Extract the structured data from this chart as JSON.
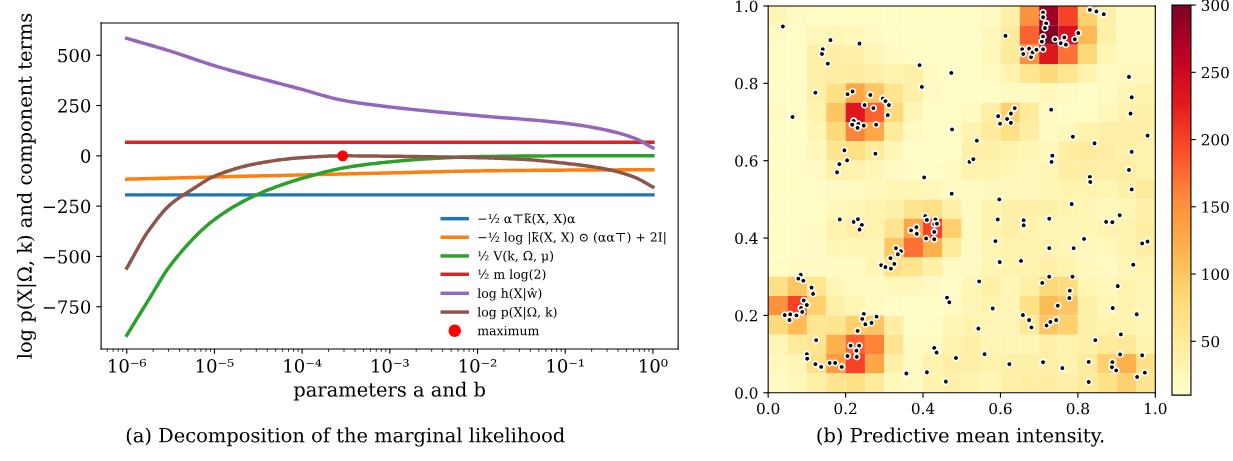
{
  "chart_data": [
    {
      "type": "line",
      "xlabel": "parameters a and b",
      "ylabel": "log p(X|Ω, k) and component terms",
      "log": "x",
      "legend": "bottom right",
      "grid": false,
      "xlim": [
        5.1e-07,
        1.94
      ],
      "xticks": [
        {
          "value": 1e-06,
          "label": "10⁻⁶"
        },
        {
          "value": 1e-05,
          "label": "10⁻⁵"
        },
        {
          "value": 0.0001,
          "label": "10⁻⁴"
        },
        {
          "value": 0.001,
          "label": "10⁻³"
        },
        {
          "value": 0.01,
          "label": "10⁻²"
        },
        {
          "value": 0.1,
          "label": "10⁻¹"
        },
        {
          "value": 1,
          "label": "10⁰"
        }
      ],
      "ylim": [
        -960,
        660
      ],
      "yticks": [
        {
          "value": -750,
          "label": "−750"
        },
        {
          "value": -500,
          "label": "−500"
        },
        {
          "value": -250,
          "label": "−250"
        },
        0,
        250,
        500
      ],
      "annotations": [
        "(a) Decomposition of the marginal likelihood"
      ],
      "series": [
        {
          "name": "−½ α⊤k̃(X, X)α",
          "color": "#1f77b4",
          "x": [
            1e-06,
            1
          ],
          "values": [
            -194,
            -194
          ]
        },
        {
          "name": "−½ log |k̃(X, X) ⊙ (αα⊤) + 2I|",
          "color": "#ff7f0e",
          "x": [
            1e-06,
            1e-05,
            0.0001,
            0.001,
            0.01,
            0.1,
            1
          ],
          "values": [
            -116,
            -105,
            -95,
            -85,
            -75,
            -71,
            -69
          ]
        },
        {
          "name": "½ V(k, Ω, μ)",
          "color": "#2ca02c",
          "x": [
            1e-06,
            1.78e-06,
            3.16e-06,
            1e-05,
            3.16e-05,
            0.0001,
            0.000316,
            0.001,
            0.00316,
            0.01,
            0.1,
            1
          ],
          "values": [
            -892,
            -715,
            -543,
            -317,
            -190,
            -112,
            -58,
            -30,
            -13,
            -4,
            0,
            0
          ]
        },
        {
          "name": "½ m log(2)",
          "color": "#d62728",
          "x": [
            1e-06,
            1
          ],
          "values": [
            67,
            67
          ]
        },
        {
          "name": "log h(X|ŵ)",
          "color": "#9467bd",
          "x": [
            1e-06,
            3.16e-06,
            1e-05,
            0.0001,
            0.00029,
            0.001,
            0.01,
            0.1,
            0.316,
            0.63,
            1
          ],
          "values": [
            584,
            520,
            448,
            330,
            276,
            243,
            200,
            162,
            125,
            86,
            39
          ]
        },
        {
          "name": "log p(X|Ω, k)",
          "color": "#8c564b",
          "x": [
            1e-06,
            1.78e-06,
            3.16e-06,
            5.62e-06,
            1e-05,
            3.16e-05,
            0.0001,
            0.00029,
            0.001,
            0.01,
            0.0316,
            0.1,
            0.316,
            0.63,
            1
          ],
          "values": [
            -558,
            -371,
            -241,
            -166,
            -101,
            -37,
            -9,
            0,
            -2,
            -9,
            -17,
            -37,
            -69,
            -108,
            -155
          ]
        },
        {
          "name": "maximum",
          "type": "scatter",
          "marker": "circle",
          "color": "#ff0000",
          "x": [
            0.00029
          ],
          "values": [
            0
          ]
        }
      ]
    },
    {
      "type": "heatmap",
      "annotations": [
        "(b) Predictive mean intensity."
      ],
      "grid": false,
      "xlim": [
        0,
        1
      ],
      "xticks": [
        {
          "value": 0,
          "label": "0.0"
        },
        0.2,
        0.4,
        0.6,
        0.8,
        {
          "value": 1,
          "label": "1.0"
        }
      ],
      "ylim": [
        0,
        1
      ],
      "yticks": [
        {
          "value": 0,
          "label": "0.0"
        },
        0.2,
        0.4,
        0.6,
        0.8,
        {
          "value": 1,
          "label": "1.0"
        }
      ],
      "clim": [
        10,
        300
      ],
      "cticks": [
        50,
        100,
        150,
        200,
        250,
        300
      ],
      "cells": [
        [
          30,
          20,
          15,
          15,
          15,
          15,
          15,
          15,
          15,
          15,
          15,
          20,
          40,
          150,
          280,
          200,
          90,
          40,
          20,
          20
        ],
        [
          20,
          15,
          25,
          30,
          25,
          20,
          15,
          15,
          15,
          15,
          15,
          25,
          50,
          180,
          300,
          240,
          110,
          40,
          20,
          20
        ],
        [
          15,
          15,
          40,
          45,
          40,
          30,
          20,
          15,
          15,
          15,
          15,
          25,
          50,
          150,
          230,
          170,
          80,
          30,
          20,
          20
        ],
        [
          15,
          15,
          40,
          45,
          45,
          40,
          35,
          40,
          20,
          15,
          15,
          20,
          35,
          60,
          80,
          60,
          35,
          20,
          25,
          25
        ],
        [
          15,
          15,
          40,
          70,
          130,
          100,
          60,
          40,
          20,
          15,
          15,
          15,
          20,
          20,
          25,
          20,
          15,
          20,
          30,
          35
        ],
        [
          20,
          15,
          35,
          100,
          230,
          180,
          80,
          30,
          15,
          15,
          20,
          40,
          90,
          50,
          20,
          15,
          15,
          25,
          35,
          40
        ],
        [
          15,
          15,
          30,
          80,
          160,
          130,
          50,
          20,
          15,
          15,
          35,
          50,
          70,
          45,
          20,
          25,
          35,
          40,
          40,
          40
        ],
        [
          15,
          15,
          25,
          60,
          70,
          50,
          30,
          15,
          15,
          15,
          40,
          40,
          35,
          30,
          25,
          45,
          50,
          45,
          40,
          35
        ],
        [
          15,
          15,
          20,
          40,
          35,
          30,
          20,
          15,
          15,
          20,
          35,
          35,
          30,
          25,
          30,
          45,
          45,
          40,
          45,
          35
        ],
        [
          15,
          15,
          15,
          20,
          20,
          25,
          30,
          30,
          25,
          20,
          20,
          25,
          25,
          25,
          30,
          35,
          35,
          30,
          40,
          50
        ],
        [
          15,
          15,
          15,
          25,
          30,
          35,
          40,
          60,
          70,
          40,
          20,
          35,
          40,
          40,
          40,
          35,
          30,
          25,
          30,
          40
        ],
        [
          15,
          15,
          20,
          35,
          45,
          35,
          60,
          130,
          200,
          90,
          20,
          35,
          40,
          35,
          30,
          30,
          30,
          35,
          35,
          45
        ],
        [
          15,
          15,
          20,
          30,
          30,
          30,
          100,
          170,
          120,
          50,
          20,
          30,
          35,
          35,
          35,
          30,
          25,
          25,
          35,
          45
        ],
        [
          15,
          20,
          20,
          20,
          20,
          30,
          70,
          60,
          40,
          20,
          20,
          30,
          35,
          35,
          40,
          35,
          25,
          20,
          30,
          35
        ],
        [
          70,
          100,
          60,
          30,
          20,
          20,
          25,
          25,
          20,
          15,
          30,
          40,
          30,
          40,
          80,
          75,
          30,
          25,
          35,
          30
        ],
        [
          150,
          200,
          90,
          40,
          30,
          20,
          15,
          15,
          15,
          20,
          30,
          35,
          30,
          70,
          110,
          100,
          40,
          30,
          35,
          30
        ],
        [
          80,
          110,
          60,
          60,
          90,
          100,
          45,
          15,
          15,
          30,
          35,
          30,
          30,
          55,
          100,
          90,
          40,
          35,
          35,
          30
        ],
        [
          30,
          50,
          60,
          120,
          180,
          160,
          60,
          20,
          20,
          35,
          40,
          30,
          30,
          30,
          40,
          35,
          40,
          50,
          55,
          35
        ],
        [
          25,
          30,
          70,
          140,
          200,
          130,
          40,
          20,
          35,
          45,
          40,
          35,
          40,
          40,
          40,
          35,
          50,
          90,
          120,
          70
        ],
        [
          20,
          25,
          40,
          60,
          70,
          50,
          25,
          20,
          35,
          40,
          35,
          30,
          40,
          45,
          45,
          40,
          50,
          70,
          90,
          60
        ]
      ],
      "series": [
        {
          "type": "scatter",
          "marker": "circle",
          "color": "#000000",
          "x": [
            0.038,
            0.063,
            0.161,
            0.141,
            0.139,
            0.154,
            0.236,
            0.122,
            0.205,
            0.218,
            0.264,
            0.249,
            0.272,
            0.296,
            0.303,
            0.312,
            0.309,
            0.221,
            0.217,
            0.233,
            0.231,
            0.247,
            0.279,
            0.197,
            0.204,
            0.184,
            0.178,
            0.277,
            0.391,
            0.397,
            0.473,
            0.475,
            0.403,
            0.474,
            0.539,
            0.52,
            0.53,
            0.594,
            0.599,
            0.617,
            0.627,
            0.637,
            0.627,
            0.597,
            0.613,
            0.71,
            0.71,
            0.718,
            0.715,
            0.71,
            0.707,
            0.71,
            0.656,
            0.659,
            0.674,
            0.679,
            0.683,
            0.693,
            0.741,
            0.756,
            0.765,
            0.769,
            0.792,
            0.801,
            0.831,
            0.848,
            0.867,
            0.731,
            0.787,
            0.843,
            0.734,
            0.732,
            0.831,
            0.832,
            0.784,
            0.932,
            0.939,
            0.936,
            0.98,
            0.939,
            0.932,
            0.939,
            0.185,
            0.221,
            0.232,
            0.242,
            0.236,
            0.406,
            0.41,
            0.432,
            0.429,
            0.436,
            0.369,
            0.383,
            0.384,
            0.408,
            0.429,
            0.429,
            0.33,
            0.343,
            0.335,
            0.316,
            0.326,
            0.292,
            0.303,
            0.317,
            0.084,
            0.078,
            0.091,
            0.112,
            0.116,
            0.092,
            0.1,
            0.085,
            0.088,
            0.073,
            0.043,
            0.057,
            0.055,
            0.124,
            0.1,
            0.101,
            0.122,
            0.137,
            0.159,
            0.173,
            0.19,
            0.205,
            0.213,
            0.235,
            0.228,
            0.229,
            0.231,
            0.247,
            0.243,
            0.251,
            0.267,
            0.28,
            0.462,
            0.468,
            0.545,
            0.58,
            0.543,
            0.429,
            0.435,
            0.357,
            0.41,
            0.459,
            0.485,
            0.559,
            0.623,
            0.593,
            0.587,
            0.598,
            0.66,
            0.66,
            0.653,
            0.726,
            0.726,
            0.708,
            0.726,
            0.784,
            0.816,
            0.789,
            0.786,
            0.779,
            0.778,
            0.658,
            0.674,
            0.68,
            0.719,
            0.729,
            0.744,
            0.748,
            0.71,
            0.76,
            0.845,
            0.828,
            0.828,
            0.873,
            0.889,
            0.908,
            0.943,
            0.966,
            0.98,
            0.903,
            0.89,
            0.952,
            0.911,
            0.909,
            0.889,
            0.888,
            0.899,
            0.966,
            0.973,
            0.953
          ],
          "values": [
            0.947,
            0.713,
            0.912,
            0.888,
            0.876,
            0.851,
            0.903,
            0.776,
            0.772,
            0.779,
            0.77,
            0.744,
            0.736,
            0.761,
            0.754,
            0.744,
            0.718,
            0.703,
            0.693,
            0.695,
            0.685,
            0.691,
            0.693,
            0.627,
            0.601,
            0.591,
            0.57,
            0.618,
            0.847,
            0.791,
            0.827,
            0.681,
            0.557,
            0.515,
            0.652,
            0.597,
            0.604,
            0.715,
            0.696,
            0.708,
            0.722,
            0.736,
            0.698,
            0.5,
            0.923,
            0.983,
            0.971,
            0.955,
            0.943,
            0.921,
            0.908,
            0.888,
            0.888,
            0.876,
            0.89,
            0.868,
            0.88,
            0.887,
            0.914,
            0.904,
            0.919,
            0.9,
            0.914,
            0.93,
            0.99,
            0.986,
            0.979,
            0.732,
            0.662,
            0.645,
            0.613,
            0.597,
            0.558,
            0.545,
            0.49,
            0.817,
            0.764,
            0.722,
            0.665,
            0.623,
            0.576,
            0.526,
            0.448,
            0.442,
            0.449,
            0.434,
            0.422,
            0.457,
            0.447,
            0.448,
            0.436,
            0.437,
            0.42,
            0.428,
            0.411,
            0.399,
            0.416,
            0.397,
            0.374,
            0.366,
            0.358,
            0.348,
            0.333,
            0.33,
            0.325,
            0.321,
            0.305,
            0.295,
            0.29,
            0.272,
            0.256,
            0.239,
            0.227,
            0.219,
            0.209,
            0.2,
            0.201,
            0.203,
            0.188,
            0.136,
            0.1,
            0.088,
            0.074,
            0.067,
            0.077,
            0.077,
            0.067,
            0.095,
            0.122,
            0.122,
            0.109,
            0.093,
            0.16,
            0.204,
            0.191,
            0.177,
            0.181,
            0.197,
            0.246,
            0.234,
            0.288,
            0.218,
            0.166,
            0.116,
            0.104,
            0.05,
            0.053,
            0.029,
            0.09,
            0.1,
            0.074,
            0.448,
            0.392,
            0.338,
            0.446,
            0.433,
            0.341,
            0.45,
            0.374,
            0.284,
            0.3,
            0.488,
            0.398,
            0.374,
            0.3,
            0.264,
            0.245,
            0.201,
            0.188,
            0.169,
            0.174,
            0.183,
            0.188,
            0.225,
            0.079,
            0.064,
            0.136,
            0.08,
            0.028,
            0.442,
            0.441,
            0.459,
            0.331,
            0.386,
            0.391,
            0.276,
            0.219,
            0.203,
            0.151,
            0.099,
            0.079,
            0.066,
            0.058,
            0.097,
            0.052,
            0.041
          ]
        }
      ]
    }
  ]
}
